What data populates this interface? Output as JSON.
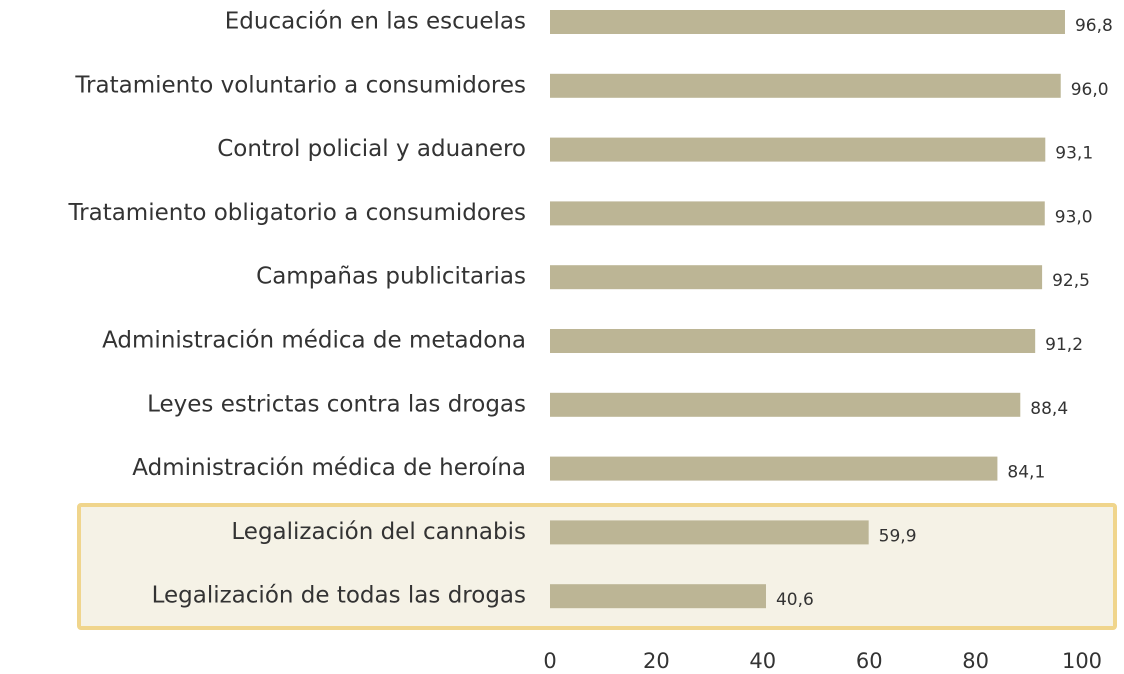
{
  "chart_data": {
    "type": "hbar",
    "categories": [
      "Educación en las escuelas",
      "Tratamiento voluntario a consumidores",
      "Control policial y aduanero",
      "Tratamiento obligatorio a consumidores",
      "Campañas publicitarias",
      "Administración médica de metadona",
      "Leyes estrictas contra las drogas",
      "Administración médica de heroína",
      "Legalización del cannabis",
      "Legalización de todas las drogas"
    ],
    "values": [
      96.8,
      96.0,
      93.1,
      93.0,
      92.5,
      91.2,
      88.4,
      84.1,
      59.9,
      40.6
    ],
    "value_labels": [
      "96,8",
      "96,0",
      "93,1",
      "93,0",
      "92,5",
      "91,2",
      "88,4",
      "84,1",
      "59,9",
      "40,6"
    ],
    "color": "#bcb595",
    "xlim": [
      0,
      100
    ],
    "xticks": [
      0,
      20,
      40,
      60,
      80,
      100
    ],
    "grid": false
  }
}
